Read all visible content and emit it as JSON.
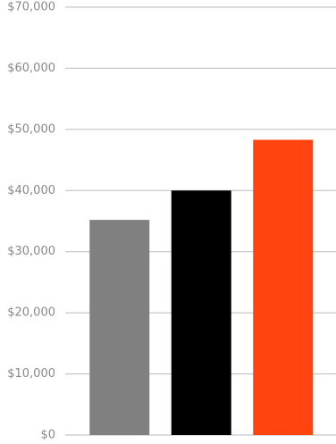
{
  "chart_data": {
    "type": "bar",
    "categories": [
      null,
      null,
      null
    ],
    "values": [
      35200,
      40000,
      48300
    ],
    "colors": [
      "#808080",
      "#000000",
      "#ff4410"
    ],
    "ylim": [
      0,
      70000
    ],
    "yticks": [
      {
        "value": 0,
        "label": "$0"
      },
      {
        "value": 10000,
        "label": "$10,000"
      },
      {
        "value": 20000,
        "label": "$20,000"
      },
      {
        "value": 30000,
        "label": "$30,000"
      },
      {
        "value": 40000,
        "label": "$40,000"
      },
      {
        "value": 50000,
        "label": "$50,000"
      },
      {
        "value": 60000,
        "label": "$60,000"
      },
      {
        "value": 70000,
        "label": "$70,000"
      }
    ],
    "grid": true
  }
}
